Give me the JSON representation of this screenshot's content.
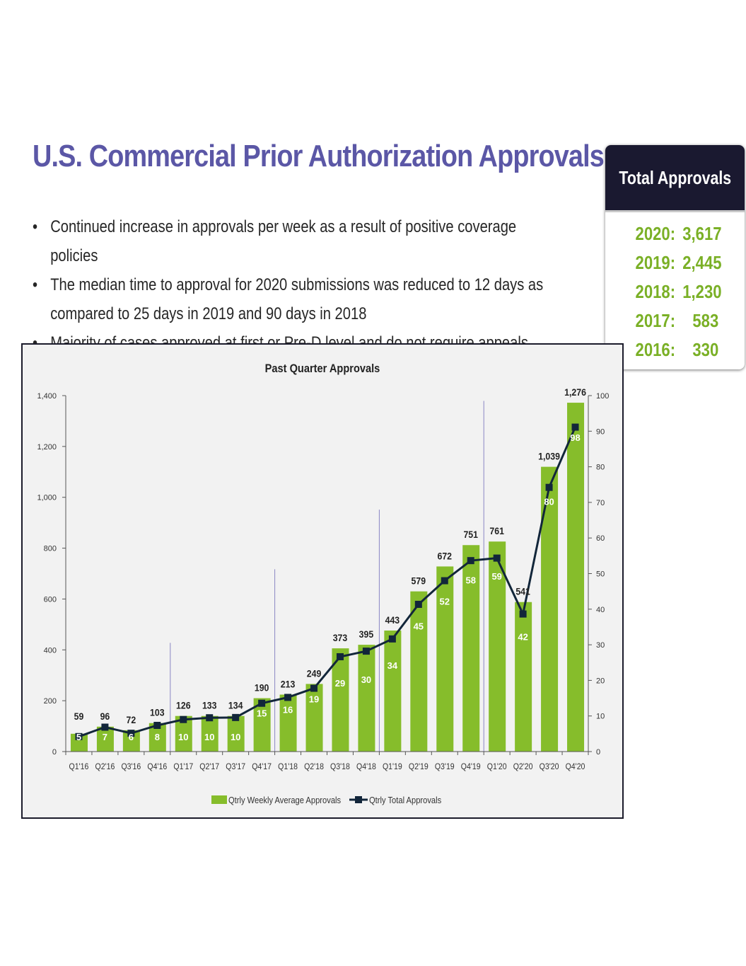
{
  "title": "U.S. Commercial Prior Authorization Approvals",
  "bullets": [
    "Continued increase in approvals per week as a result of positive coverage policies",
    "The median time to approval for 2020 submissions was reduced to 12 days as compared to 25 days in 2019 and 90 days in 2018",
    "Majority of cases approved at first or Pre-D level and do not require appeals process"
  ],
  "bullet_symbol": "•",
  "totals": {
    "header": "Total Approvals",
    "rows": [
      {
        "year": "2020:",
        "value": "3,617"
      },
      {
        "year": "2019:",
        "value": "2,445"
      },
      {
        "year": "2018:",
        "value": "1,230"
      },
      {
        "year": "2017:",
        "value": "583"
      },
      {
        "year": "2016:",
        "value": "330"
      }
    ]
  },
  "colors": {
    "title": "#5b57a6",
    "bar": "#86bd2b",
    "line": "#12263a",
    "totals_value": "#7ab026",
    "totals_header_bg": "#1a1930",
    "year_divider": "#8a86c4"
  },
  "chart_data": {
    "type": "bar",
    "title": "Past Quarter Approvals",
    "categories": [
      "Q1'16",
      "Q2'16",
      "Q3'16",
      "Q4'16",
      "Q1'17",
      "Q2'17",
      "Q3'17",
      "Q4'17",
      "Q1'18",
      "Q2'18",
      "Q3'18",
      "Q4'18",
      "Q1'19",
      "Q2'19",
      "Q3'19",
      "Q4'19",
      "Q1'20",
      "Q2'20",
      "Q3'20",
      "Q4'20"
    ],
    "series": [
      {
        "name": "Qtrly Weekly Average Approvals",
        "type": "bar",
        "axis": "right",
        "values": [
          5,
          7,
          6,
          8,
          10,
          10,
          10,
          15,
          16,
          19,
          29,
          30,
          34,
          45,
          52,
          58,
          59,
          42,
          80,
          98
        ],
        "value_labels": [
          "5",
          "7",
          "6",
          "8",
          "10",
          "10",
          "10",
          "15",
          "16",
          "19",
          "29",
          "30",
          "34",
          "45",
          "52",
          "58",
          "59",
          "42",
          "80",
          "98"
        ]
      },
      {
        "name": "Qtrly Total Approvals",
        "type": "line",
        "axis": "left",
        "values": [
          59,
          96,
          72,
          103,
          126,
          133,
          134,
          190,
          213,
          249,
          373,
          395,
          443,
          579,
          672,
          751,
          761,
          541,
          1039,
          1276
        ],
        "value_labels": [
          "59",
          "96",
          "72",
          "103",
          "126",
          "133",
          "134",
          "190",
          "213",
          "249",
          "373",
          "395",
          "443",
          "579",
          "672",
          "751",
          "761",
          "541",
          "1,039",
          "1,276"
        ]
      }
    ],
    "y_left": {
      "min": 0,
      "max": 1400,
      "ticks": [
        0,
        200,
        400,
        600,
        800,
        1000,
        1200,
        1400
      ],
      "tick_labels": [
        "0",
        "200",
        "400",
        "600",
        "800",
        "1,000",
        "1,200",
        "1,400"
      ]
    },
    "y_right": {
      "min": 0,
      "max": 100,
      "ticks": [
        0,
        10,
        20,
        30,
        40,
        50,
        60,
        70,
        80,
        90,
        100
      ],
      "tick_labels": [
        "0",
        "10",
        "20",
        "30",
        "40",
        "50",
        "60",
        "70",
        "80",
        "90",
        "100"
      ]
    },
    "year_dividers_after": [
      "Q4'16",
      "Q4'17",
      "Q4'18",
      "Q4'19"
    ],
    "grid": false,
    "legend_position": "bottom-center"
  }
}
